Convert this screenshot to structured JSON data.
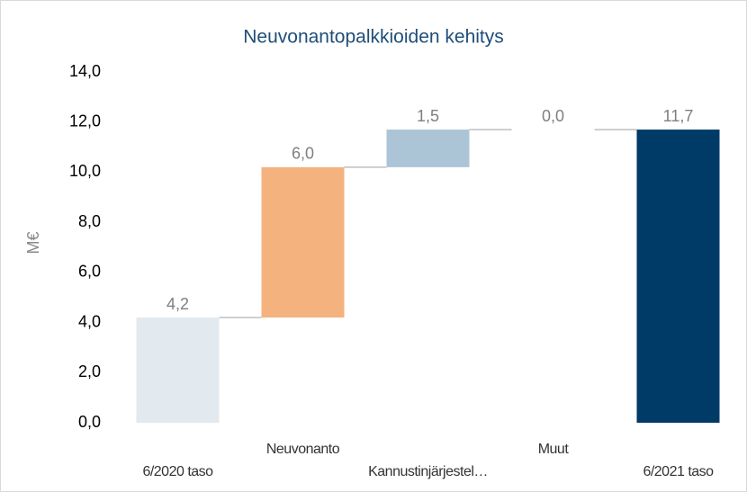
{
  "chart_data": {
    "type": "waterfall",
    "title": "Neuvonantopalkkioiden kehitys",
    "y_label": "M€",
    "categories": [
      "6/2020 taso",
      "Neuvonanto",
      "Kannustinjärjestel…",
      "Muut",
      "6/2021 taso"
    ],
    "values": [
      4.2,
      6.0,
      1.5,
      0.0,
      11.7
    ],
    "value_labels": [
      "4,2",
      "6,0",
      "1,5",
      "0,0",
      "11,7"
    ],
    "totals": [
      true,
      false,
      false,
      false,
      true
    ],
    "colors": [
      "#e2eaef",
      "#f4b27e",
      "#abc4d6",
      "#c8ccd0",
      "#003a66"
    ],
    "ylim": [
      0,
      14
    ],
    "yticks": [
      {
        "value": 0,
        "label": "0,0"
      },
      {
        "value": 2,
        "label": "2,0"
      },
      {
        "value": 4,
        "label": "4,0"
      },
      {
        "value": 6,
        "label": "6,0"
      },
      {
        "value": 8,
        "label": "8,0"
      },
      {
        "value": 10,
        "label": "10,0"
      },
      {
        "value": 12,
        "label": "12,0"
      },
      {
        "value": 14,
        "label": "14,0"
      }
    ],
    "grid": false
  }
}
